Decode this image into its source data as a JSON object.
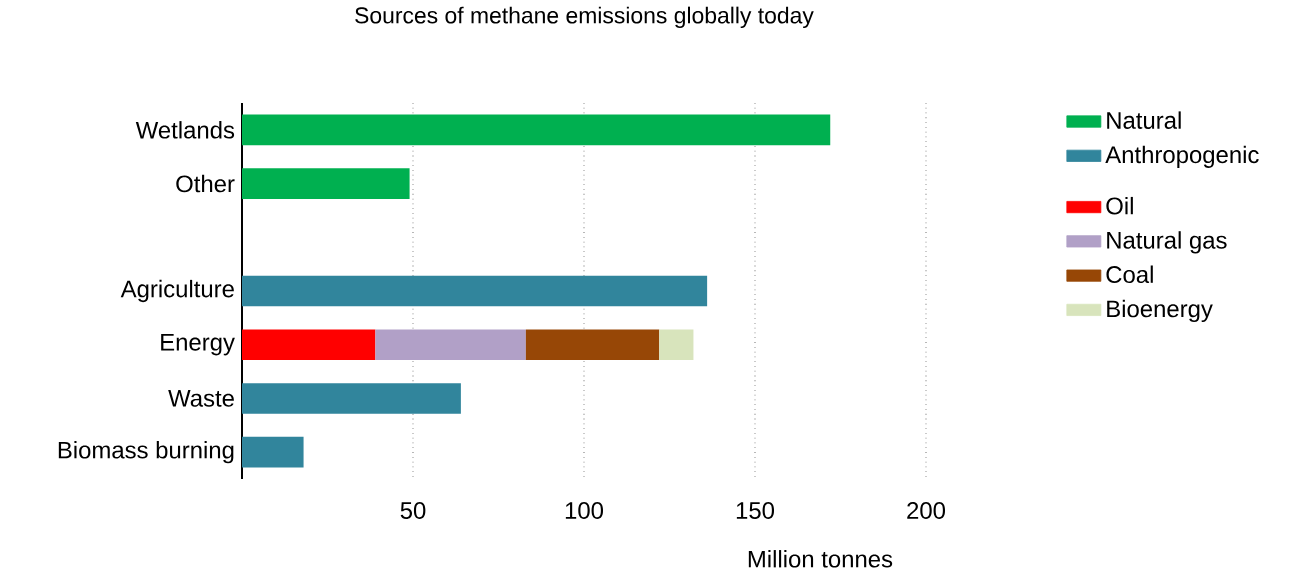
{
  "chart_data": {
    "type": "bar",
    "orientation": "horizontal",
    "stacked": true,
    "title": "Sources of methane emissions globally today",
    "xlabel": "Million tonnes",
    "categories": [
      "Wetlands",
      "Other",
      null,
      "Agriculture",
      "Energy",
      "Waste",
      "Biomass burning"
    ],
    "series": [
      {
        "name": "Natural",
        "color": "#00b050",
        "values": [
          172,
          49,
          null,
          null,
          null,
          null,
          null
        ]
      },
      {
        "name": "Anthropogenic",
        "color": "#31859c",
        "values": [
          null,
          null,
          null,
          136,
          null,
          64,
          18
        ]
      },
      {
        "name": "Oil",
        "color": "#ff0000",
        "values": [
          null,
          null,
          null,
          null,
          39,
          null,
          null
        ]
      },
      {
        "name": "Natural gas",
        "color": "#b1a0c7",
        "values": [
          null,
          null,
          null,
          null,
          44,
          null,
          null
        ]
      },
      {
        "name": "Coal",
        "color": "#974706",
        "values": [
          null,
          null,
          null,
          null,
          39,
          null,
          null
        ]
      },
      {
        "name": "Bioenergy",
        "color": "#d8e4bc",
        "values": [
          null,
          null,
          null,
          null,
          10,
          null,
          null
        ]
      }
    ],
    "xlim": [
      0,
      200
    ],
    "xticks": [
      50,
      100,
      150,
      200
    ],
    "grid": "x",
    "legend": "right"
  }
}
